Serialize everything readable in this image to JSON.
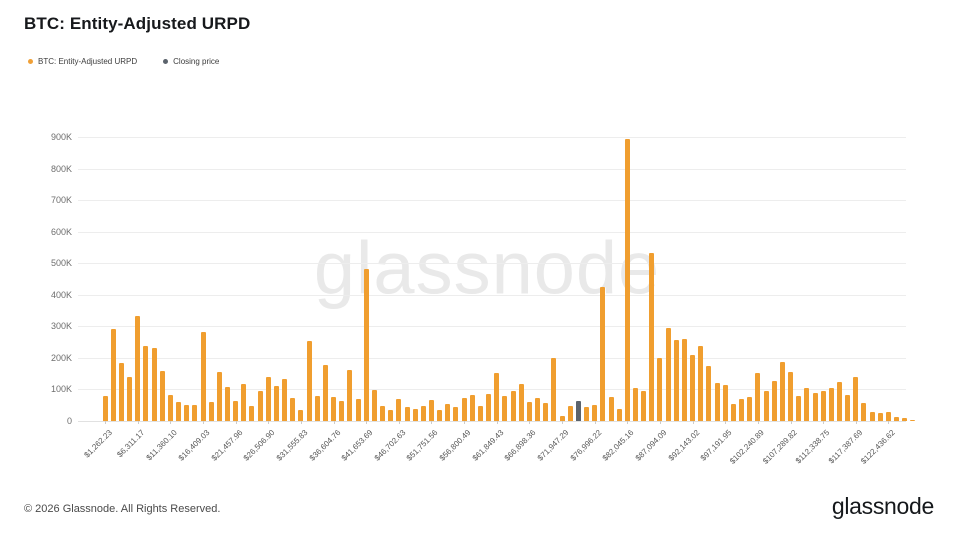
{
  "page": {
    "title": "BTC: Entity-Adjusted URPD",
    "watermark": "glassnode",
    "footer_copyright": "© 2026 Glassnode. All Rights Reserved.",
    "brand_logo": "glassnode"
  },
  "legend": [
    {
      "label": "BTC: Entity-Adjusted URPD",
      "color": "#F0A037"
    },
    {
      "label": "Closing price",
      "color": "#5B636C"
    }
  ],
  "colors": {
    "bar_orange": "#F09E2F",
    "closing_price_gray": "#5B636C",
    "grid": "#EDEDED",
    "axis_text": "#6E6E6E",
    "background": "#FFFFFF"
  },
  "chart_data": {
    "type": "bar",
    "title": "BTC: Entity-Adjusted URPD",
    "xlabel": "",
    "ylabel": "",
    "y_unit": "BTC (entity-adjusted supply per price bucket)",
    "y_tick_labels": [
      "0",
      "100K",
      "200K",
      "300K",
      "400K",
      "500K",
      "600K",
      "700K",
      "800K",
      "900K"
    ],
    "y_ticks_k": [
      0,
      100,
      200,
      300,
      400,
      500,
      600,
      700,
      800,
      900
    ],
    "ylim_k": [
      0,
      950
    ],
    "grid": true,
    "legend_position": "top-left",
    "bucket_width_usd": 1262.23,
    "x_tick_interval_bars": 4,
    "x_tick_labels": [
      "$1,262.23",
      "$6,311.17",
      "$11,360.10",
      "$16,409.03",
      "$21,457.96",
      "$26,506.90",
      "$31,555.83",
      "$36,604.76",
      "$41,653.69",
      "$46,702.63",
      "$51,751.56",
      "$56,800.49",
      "$61,849.43",
      "$66,898.36",
      "$71,947.29",
      "$76,996.22",
      "$82,045.16",
      "$87,094.09",
      "$92,143.02",
      "$97,191.95",
      "$102,240.89",
      "$107,289.82",
      "$112,338.75",
      "$117,387.69",
      "$122,436.62"
    ],
    "series": [
      {
        "name": "BTC: Entity-Adjusted URPD",
        "unit": "K BTC",
        "values_k": [
          80,
          290,
          185,
          140,
          333,
          238,
          232,
          157,
          84,
          60,
          50,
          51,
          283,
          61,
          155,
          108,
          64,
          117,
          46,
          94,
          141,
          110,
          133,
          73,
          36,
          252,
          78,
          176,
          75,
          64,
          162,
          71,
          482,
          99,
          46,
          36,
          71,
          43,
          39,
          46,
          67,
          36,
          54,
          43,
          73,
          81,
          46,
          85,
          152,
          78,
          94,
          117,
          60,
          73,
          57,
          201,
          15,
          46,
          63,
          43,
          52,
          425,
          75,
          39,
          893,
          104,
          94,
          532,
          199,
          296,
          257,
          260,
          210,
          238,
          173,
          120,
          113,
          54,
          71,
          75,
          152,
          95,
          128,
          186,
          155,
          78,
          104,
          89,
          96,
          104,
          123,
          81,
          140,
          57,
          28,
          25,
          28,
          12,
          8,
          4
        ]
      }
    ],
    "closing_price_bar": {
      "index": 58,
      "value_k": 63,
      "name": "Closing price"
    }
  }
}
